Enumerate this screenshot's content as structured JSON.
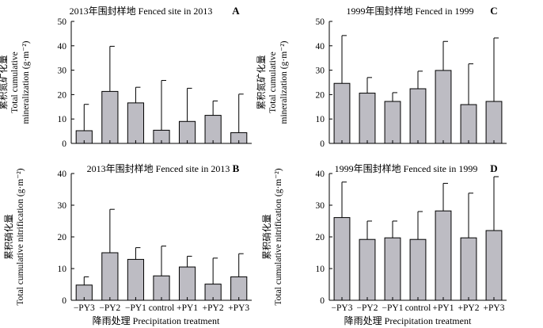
{
  "figure": {
    "x_axis_label": "降雨处理 Precipitation treatment",
    "colors": {
      "bar_fill": "#bdbcc3",
      "bar_stroke": "#000000",
      "axis": "#000000"
    }
  },
  "chart_data": [
    {
      "type": "bar",
      "panel": "A",
      "title": "2013年围封样地 Fenced site in 2013",
      "ylabel_cn": "累积氮矿化量",
      "ylabel_line1": "Total cumulative",
      "ylabel_line2": "mineralization (g·m⁻²)",
      "ylim": [
        0,
        50
      ],
      "yticks": [
        0,
        10,
        20,
        30,
        40,
        50
      ],
      "categories": [
        "−PY3",
        "−PY2",
        "−PY1",
        "control",
        "+PY1",
        "+PY2",
        "+PY3"
      ],
      "show_category_labels": false,
      "values": [
        5.2,
        21.3,
        16.6,
        5.4,
        9.0,
        11.5,
        4.4
      ],
      "error_upper": [
        16.0,
        39.8,
        23.0,
        25.8,
        22.6,
        17.4,
        20.2
      ],
      "grid": false
    },
    {
      "type": "bar",
      "panel": "C",
      "title": "1999年围封样地 Fenced in 1999",
      "ylabel_cn": "累积氮矿化量",
      "ylabel_line1": "Total cumulative",
      "ylabel_line2": "mineralization (g·m⁻²)",
      "ylim": [
        0,
        50
      ],
      "yticks": [
        0,
        10,
        20,
        30,
        40,
        50
      ],
      "categories": [
        "−PY3",
        "−PY2",
        "−PY1",
        "control",
        "+PY1",
        "+PY2",
        "+PY3"
      ],
      "show_category_labels": false,
      "values": [
        24.6,
        20.6,
        17.2,
        22.4,
        29.9,
        15.9,
        17.2
      ],
      "error_upper": [
        44.2,
        27.0,
        20.8,
        29.6,
        41.8,
        32.6,
        43.2
      ],
      "grid": false
    },
    {
      "type": "bar",
      "panel": "B",
      "title": "2013年围封样地 Fenced site in 2013",
      "ylabel_cn": "累积硝化量",
      "ylabel_line1": "Total cumulative nitrification (g·m⁻²)",
      "ylim": [
        0,
        40
      ],
      "yticks": [
        0,
        10,
        20,
        30,
        40
      ],
      "categories": [
        "−PY3",
        "−PY2",
        "−PY1",
        "control",
        "+PY1",
        "+PY2",
        "+PY3"
      ],
      "show_category_labels": true,
      "values": [
        4.8,
        15.0,
        12.9,
        7.7,
        10.5,
        5.1,
        7.4
      ],
      "error_upper": [
        7.4,
        28.7,
        16.6,
        17.1,
        13.9,
        13.3,
        14.7
      ],
      "grid": false
    },
    {
      "type": "bar",
      "panel": "D",
      "title": "1999年围封样地 Fenced site in 1999",
      "ylabel_cn": "累积硝化量",
      "ylabel_line1": "Total cumulative nitrification (g·m⁻²)",
      "ylim": [
        0,
        40
      ],
      "yticks": [
        0,
        10,
        20,
        30,
        40
      ],
      "categories": [
        "−PY3",
        "−PY2",
        "−PY1",
        "control",
        "+PY1",
        "+PY2",
        "+PY3"
      ],
      "show_category_labels": true,
      "values": [
        26.1,
        19.2,
        19.7,
        19.2,
        28.2,
        19.7,
        22.0
      ],
      "error_upper": [
        37.3,
        25.0,
        25.0,
        28.0,
        36.9,
        33.8,
        39.0
      ],
      "grid": false
    }
  ]
}
